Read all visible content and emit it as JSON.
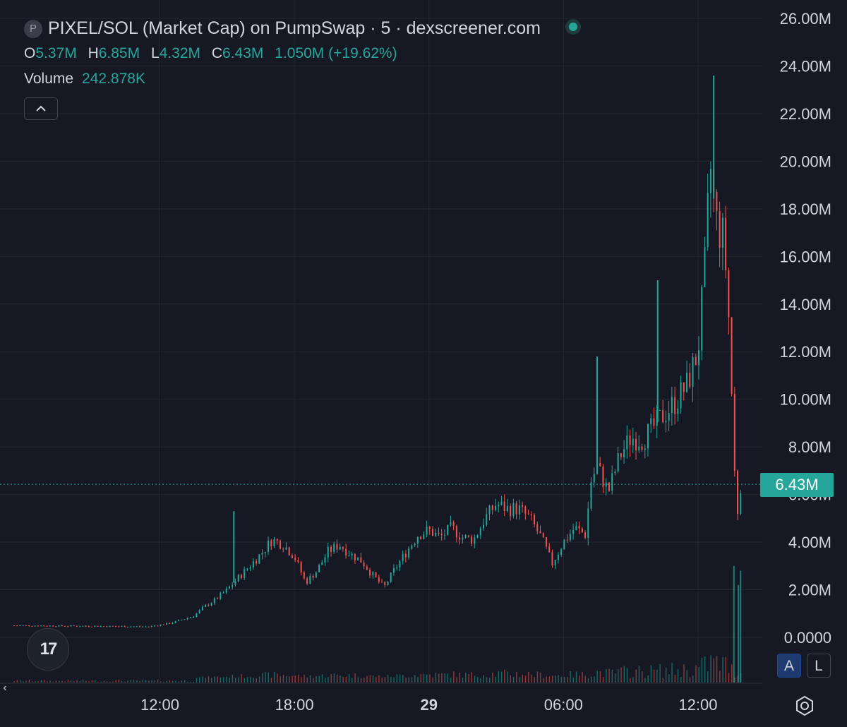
{
  "header": {
    "symbol_icon": "P",
    "title": "PIXEL/SOL (Market Cap) on PumpSwap · 5 · dexscreener.com",
    "status_color": "#26a69a"
  },
  "ohlc": {
    "o_label": "O",
    "o_value": "5.37M",
    "h_label": "H",
    "h_value": "6.85M",
    "l_label": "L",
    "l_value": "4.32M",
    "c_label": "C",
    "c_value": "6.43M",
    "change": "1.050M (+19.62%)"
  },
  "volume": {
    "label": "Volume",
    "value": "242.878K"
  },
  "collapse_icon": "chevron-up-icon",
  "logo_text": "17",
  "price_axis": {
    "last_price_label": "6.43M",
    "scale_buttons": {
      "auto": "A",
      "log": "L"
    }
  },
  "colors": {
    "up": "#26a69a",
    "down": "#ef5350",
    "background": "#161923",
    "grid": "#242833"
  },
  "chart_data": {
    "type": "candlestick",
    "y_ticks": [
      "26.00M",
      "24.00M",
      "22.00M",
      "20.00M",
      "18.00M",
      "16.00M",
      "14.00M",
      "12.00M",
      "10.00M",
      "8.00M",
      "6.00M",
      "4.00M",
      "2.00M",
      "0.0000"
    ],
    "ylim": [
      0,
      26
    ],
    "y_unit": "M",
    "x_ticks": [
      {
        "label": "12:00",
        "hour": 12
      },
      {
        "label": "18:00",
        "hour": 18
      },
      {
        "label": "29",
        "hour": 24,
        "bold": true
      },
      {
        "label": "06:00",
        "hour": 30
      },
      {
        "label": "12:00",
        "hour": 36
      }
    ],
    "xlim_hours": [
      5.5,
      38.3
    ],
    "last_price": 6.43,
    "price_path": [
      [
        5.5,
        0.5
      ],
      [
        11.5,
        0.45
      ],
      [
        12.5,
        0.6
      ],
      [
        13.5,
        0.9
      ],
      [
        14,
        1.3
      ],
      [
        14.5,
        1.6
      ],
      [
        15,
        2.0
      ],
      [
        15.5,
        2.5
      ],
      [
        16,
        3.0
      ],
      [
        16.5,
        3.5
      ],
      [
        17,
        4.1
      ],
      [
        17.5,
        3.9
      ],
      [
        18,
        3.4
      ],
      [
        18.5,
        2.3
      ],
      [
        19,
        2.8
      ],
      [
        19.5,
        3.6
      ],
      [
        20,
        3.9
      ],
      [
        20.5,
        3.5
      ],
      [
        21,
        3.2
      ],
      [
        21.5,
        2.6
      ],
      [
        22,
        2.1
      ],
      [
        22.5,
        2.9
      ],
      [
        23,
        3.6
      ],
      [
        23.5,
        4.3
      ],
      [
        24,
        4.5
      ],
      [
        24.5,
        4.2
      ],
      [
        25,
        4.6
      ],
      [
        25.5,
        4.2
      ],
      [
        26,
        4.1
      ],
      [
        26.5,
        5.0
      ],
      [
        27,
        5.6
      ],
      [
        27.5,
        5.4
      ],
      [
        28,
        5.4
      ],
      [
        28.5,
        5.0
      ],
      [
        29,
        4.2
      ],
      [
        29.5,
        3.1
      ],
      [
        30,
        4.0
      ],
      [
        30.5,
        4.6
      ],
      [
        31,
        4.3
      ],
      [
        31.2,
        6.5
      ],
      [
        31.5,
        7.2
      ],
      [
        32,
        6.1
      ],
      [
        32.5,
        7.6
      ],
      [
        33,
        8.4
      ],
      [
        33.5,
        8.3
      ],
      [
        34,
        8.8
      ],
      [
        34.5,
        9.4
      ],
      [
        35,
        9.9
      ],
      [
        35.5,
        10.6
      ],
      [
        36,
        12.0
      ],
      [
        36.3,
        15.5
      ],
      [
        36.55,
        19.8
      ],
      [
        36.8,
        17.5
      ],
      [
        37.1,
        16.8
      ],
      [
        37.3,
        15.0
      ],
      [
        37.45,
        11.5
      ],
      [
        37.65,
        6.5
      ],
      [
        37.8,
        5.0
      ],
      [
        37.9,
        6.43
      ]
    ],
    "spikes": [
      {
        "hour": 15.3,
        "high": 5.3
      },
      {
        "hour": 31.5,
        "high": 11.8
      },
      {
        "hour": 34.2,
        "high": 15.0
      },
      {
        "hour": 36.7,
        "high": 23.6
      }
    ],
    "volume_spikes": [
      {
        "hour": 37.6,
        "value": 3.0
      },
      {
        "hour": 37.8,
        "value": 2.2
      },
      {
        "hour": 37.9,
        "value": 2.8
      }
    ]
  }
}
